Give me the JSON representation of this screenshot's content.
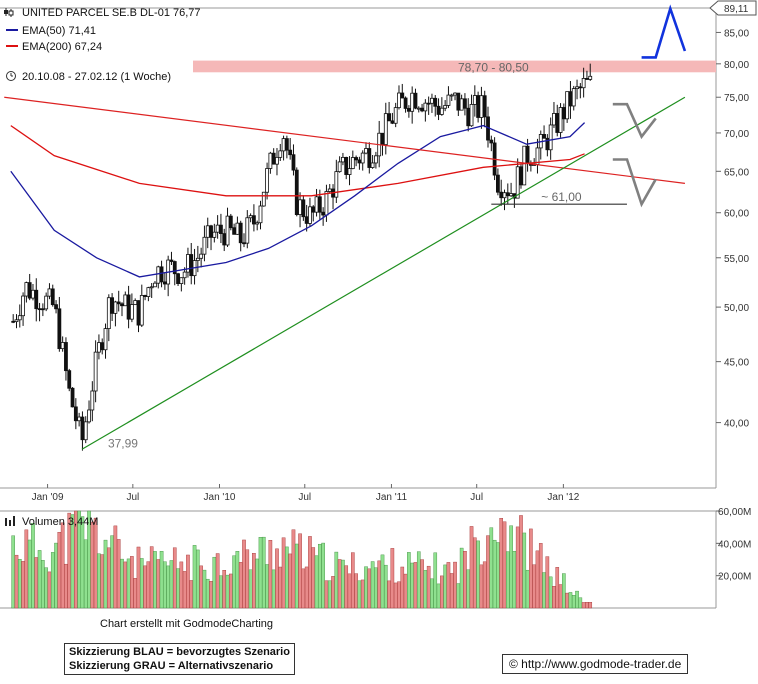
{
  "header": {
    "title": "UNITED PARCEL SE.B DL-01 76,77",
    "ema50_label": "EMA(50) 71,41",
    "ema200_label": "EMA(200) 67,24",
    "period": "20.10.08 - 27.02.12 (1 Woche)",
    "volume_label": "Volumen 3,44M"
  },
  "colors": {
    "ema50": "#1a1aa0",
    "ema200": "#dd1111",
    "trend_up": "#1f8f1f",
    "trend_down": "#dd2222",
    "resistance_zone": "#f5b8b8",
    "scenario_blue": "#1133dd",
    "scenario_gray": "#808080",
    "vol_up": "#8fe08f",
    "vol_down": "#e88a8a"
  },
  "annotations": {
    "zone_label": "78,70 - 80,50",
    "support_label": "~ 61,00",
    "low_label": "37,99",
    "last_price_tag": "89,11"
  },
  "footer": {
    "credit": "Chart erstellt mit GodmodeCharting",
    "legend_blue": "Skizzierung BLAU = bevorzugtes Szenario",
    "legend_gray": "Skizzierung GRAU = Alternativszenario",
    "copyright": "© http://www.godmode-trader.de"
  },
  "chart_data": [
    {
      "type": "candlestick",
      "title": "UNITED PARCEL SE.B DL-01 76,77",
      "y_scale": "log",
      "ylim": [
        36.5,
        89.11
      ],
      "y_ticks": [
        "85,00",
        "80,00",
        "75,00",
        "70,00",
        "65,00",
        "60,00",
        "55,00",
        "50,00",
        "45,00",
        "40,00"
      ],
      "y_tick_values": [
        85,
        80,
        75,
        70,
        65,
        60,
        55,
        50,
        45,
        40
      ],
      "x_ticks": [
        "Jan '09",
        "Jul",
        "Jan '10",
        "Jul",
        "Jan '11",
        "Jul",
        "Jan '12"
      ],
      "x_tick_dates": [
        "2009-01",
        "2009-07",
        "2010-01",
        "2010-07",
        "2011-01",
        "2011-07",
        "2012-01"
      ],
      "date_range": [
        "2008-10-20",
        "2012-02-27"
      ],
      "close_anchors": [
        {
          "date": "2008-10",
          "close": 48.0
        },
        {
          "date": "2008-11",
          "close": 52.0
        },
        {
          "date": "2008-12",
          "close": 51.0
        },
        {
          "date": "2009-01",
          "close": 50.0
        },
        {
          "date": "2009-02",
          "close": 42.5
        },
        {
          "date": "2009-03",
          "close": 38.5
        },
        {
          "date": "2009-04",
          "close": 45.0
        },
        {
          "date": "2009-05",
          "close": 51.0
        },
        {
          "date": "2009-06",
          "close": 50.0
        },
        {
          "date": "2009-07",
          "close": 49.5
        },
        {
          "date": "2009-08",
          "close": 53.5
        },
        {
          "date": "2009-09",
          "close": 54.0
        },
        {
          "date": "2009-10",
          "close": 53.5
        },
        {
          "date": "2009-11",
          "close": 55.0
        },
        {
          "date": "2009-12",
          "close": 57.5
        },
        {
          "date": "2010-01",
          "close": 58.0
        },
        {
          "date": "2010-02",
          "close": 57.0
        },
        {
          "date": "2010-03",
          "close": 59.0
        },
        {
          "date": "2010-04",
          "close": 65.0
        },
        {
          "date": "2010-05",
          "close": 70.5
        },
        {
          "date": "2010-06",
          "close": 61.0
        },
        {
          "date": "2010-07",
          "close": 59.5
        },
        {
          "date": "2010-08",
          "close": 61.5
        },
        {
          "date": "2010-09",
          "close": 65.0
        },
        {
          "date": "2010-10",
          "close": 66.5
        },
        {
          "date": "2010-11",
          "close": 67.5
        },
        {
          "date": "2010-12",
          "close": 70.0
        },
        {
          "date": "2011-01",
          "close": 73.5
        },
        {
          "date": "2011-02",
          "close": 75.5
        },
        {
          "date": "2011-03",
          "close": 74.5
        },
        {
          "date": "2011-04",
          "close": 73.5
        },
        {
          "date": "2011-05",
          "close": 74.5
        },
        {
          "date": "2011-06",
          "close": 73.0
        },
        {
          "date": "2011-07",
          "close": 73.5
        },
        {
          "date": "2011-08",
          "close": 64.0
        },
        {
          "date": "2011-09",
          "close": 62.5
        },
        {
          "date": "2011-10",
          "close": 67.0
        },
        {
          "date": "2011-11",
          "close": 68.0
        },
        {
          "date": "2011-12",
          "close": 71.0
        },
        {
          "date": "2012-01",
          "close": 74.5
        },
        {
          "date": "2012-02",
          "close": 76.77
        }
      ],
      "ema50": [
        {
          "date": "2008-10",
          "value": 65.0
        },
        {
          "date": "2009-01",
          "value": 58.0
        },
        {
          "date": "2009-04",
          "value": 55.0
        },
        {
          "date": "2009-07",
          "value": 53.0
        },
        {
          "date": "2010-01",
          "value": 54.5
        },
        {
          "date": "2010-04",
          "value": 56.0
        },
        {
          "date": "2010-07",
          "value": 58.5
        },
        {
          "date": "2010-10",
          "value": 62.0
        },
        {
          "date": "2011-01",
          "value": 66.0
        },
        {
          "date": "2011-04",
          "value": 69.5
        },
        {
          "date": "2011-07",
          "value": 71.0
        },
        {
          "date": "2011-10",
          "value": 68.5
        },
        {
          "date": "2012-01",
          "value": 69.5
        },
        {
          "date": "2012-02",
          "value": 71.41
        }
      ],
      "ema200": [
        {
          "date": "2008-10",
          "value": 71.0
        },
        {
          "date": "2009-01",
          "value": 67.0
        },
        {
          "date": "2009-07",
          "value": 63.5
        },
        {
          "date": "2010-01",
          "value": 62.0
        },
        {
          "date": "2010-07",
          "value": 62.0
        },
        {
          "date": "2011-01",
          "value": 63.5
        },
        {
          "date": "2011-07",
          "value": 65.5
        },
        {
          "date": "2012-01",
          "value": 66.5
        },
        {
          "date": "2012-02",
          "value": 67.24
        }
      ],
      "trendlines": [
        {
          "name": "uptrend",
          "from": {
            "date": "2009-03",
            "value": 37.99
          },
          "to": {
            "date": "2012-09",
            "value": 75.0
          }
        },
        {
          "name": "downtrend",
          "from": {
            "date": "2008-10",
            "value": 75.0
          },
          "to": {
            "date": "2012-09",
            "value": 63.5
          }
        }
      ],
      "support_line": {
        "from_date": "2011-08",
        "to_date": "2012-05",
        "value": 61.0
      },
      "resistance_zone": [
        78.7,
        80.5
      ],
      "scenario_blue": [
        {
          "date": "2012-06",
          "value": 81.0
        },
        {
          "date": "2012-07",
          "value": 81.0
        },
        {
          "date": "2012-08",
          "value": 89.0
        },
        {
          "date": "2012-09",
          "value": 82.0
        }
      ],
      "scenario_gray_1": [
        {
          "date": "2012-04",
          "value": 74.0
        },
        {
          "date": "2012-05",
          "value": 74.0
        },
        {
          "date": "2012-06",
          "value": 69.5
        },
        {
          "date": "2012-07",
          "value": 72.0
        }
      ],
      "scenario_gray_2": [
        {
          "date": "2012-04",
          "value": 66.5
        },
        {
          "date": "2012-05",
          "value": 66.5
        },
        {
          "date": "2012-06",
          "value": 61.0
        },
        {
          "date": "2012-07",
          "value": 64.0
        }
      ]
    },
    {
      "type": "bar",
      "title": "Volumen 3,44M",
      "y_ticks": [
        "60,00M",
        "40,00M",
        "20,00M"
      ],
      "y_tick_values": [
        60,
        40,
        20
      ],
      "ylim": [
        0,
        60
      ],
      "unit": "M",
      "volume_anchors": [
        {
          "date": "2008-10",
          "value": 42
        },
        {
          "date": "2009-01",
          "value": 38
        },
        {
          "date": "2009-03",
          "value": 55
        },
        {
          "date": "2009-07",
          "value": 28
        },
        {
          "date": "2010-01",
          "value": 30
        },
        {
          "date": "2010-05",
          "value": 40
        },
        {
          "date": "2010-09",
          "value": 26
        },
        {
          "date": "2011-01",
          "value": 28
        },
        {
          "date": "2011-05",
          "value": 24
        },
        {
          "date": "2011-08",
          "value": 62
        },
        {
          "date": "2011-11",
          "value": 30
        },
        {
          "date": "2012-02",
          "value": 3.44
        }
      ]
    }
  ]
}
